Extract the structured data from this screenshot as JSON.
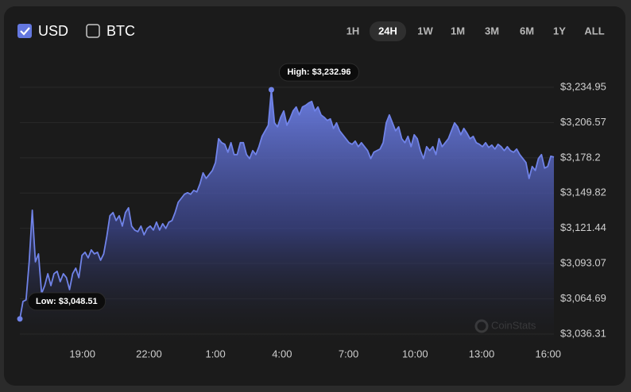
{
  "controls": {
    "currencies": [
      {
        "label": "USD",
        "checked": true
      },
      {
        "label": "BTC",
        "checked": false
      }
    ],
    "ranges": [
      {
        "label": "1H",
        "selected": false
      },
      {
        "label": "24H",
        "selected": true
      },
      {
        "label": "1W",
        "selected": false
      },
      {
        "label": "1M",
        "selected": false
      },
      {
        "label": "3M",
        "selected": false
      },
      {
        "label": "6M",
        "selected": false
      },
      {
        "label": "1Y",
        "selected": false
      },
      {
        "label": "ALL",
        "selected": false
      }
    ]
  },
  "chart_data": {
    "type": "area",
    "color": "#7083e8",
    "watermark": "CoinStats",
    "high_label": "High: $3,232.96",
    "low_label": "Low: $3,048.51",
    "grid": true,
    "xlim": [
      16.18,
      40.26
    ],
    "ylim": [
      3036.31,
      3234.95
    ],
    "xticks": [
      {
        "value": 19,
        "label": "19:00"
      },
      {
        "value": 22,
        "label": "22:00"
      },
      {
        "value": 25,
        "label": "1:00"
      },
      {
        "value": 28,
        "label": "4:00"
      },
      {
        "value": 31,
        "label": "7:00"
      },
      {
        "value": 34,
        "label": "10:00"
      },
      {
        "value": 37,
        "label": "13:00"
      },
      {
        "value": 40,
        "label": "16:00"
      }
    ],
    "yticks": [
      {
        "value": 3036.31,
        "label": "$3,036.31"
      },
      {
        "value": 3064.69,
        "label": "$3,064.69"
      },
      {
        "value": 3093.07,
        "label": "$3,093.07"
      },
      {
        "value": 3121.44,
        "label": "$3,121.44"
      },
      {
        "value": 3149.82,
        "label": "$3,149.82"
      },
      {
        "value": 3178.2,
        "label": "$3,178.2"
      },
      {
        "value": 3206.57,
        "label": "$3,206.57"
      },
      {
        "value": 3234.95,
        "label": "$3,234.95"
      }
    ],
    "x": [
      16.18,
      16.32,
      16.46,
      16.6,
      16.74,
      16.88,
      17.02,
      17.16,
      17.3,
      17.44,
      17.58,
      17.72,
      17.86,
      18,
      18.14,
      18.28,
      18.42,
      18.56,
      18.7,
      18.84,
      18.98,
      19.12,
      19.26,
      19.4,
      19.54,
      19.68,
      19.82,
      19.96,
      20.1,
      20.24,
      20.38,
      20.52,
      20.66,
      20.8,
      20.94,
      21.08,
      21.22,
      21.36,
      21.5,
      21.64,
      21.78,
      21.92,
      22.06,
      22.2,
      22.34,
      22.48,
      22.62,
      22.76,
      22.9,
      23.04,
      23.18,
      23.32,
      23.46,
      23.6,
      23.74,
      23.88,
      24.02,
      24.16,
      24.3,
      24.44,
      24.58,
      24.72,
      24.86,
      25,
      25.14,
      25.28,
      25.42,
      25.56,
      25.7,
      25.84,
      25.98,
      26.12,
      26.26,
      26.4,
      26.54,
      26.68,
      26.82,
      26.96,
      27.1,
      27.24,
      27.38,
      27.52,
      27.66,
      27.8,
      27.94,
      28.08,
      28.22,
      28.36,
      28.5,
      28.64,
      28.78,
      28.92,
      29.06,
      29.2,
      29.34,
      29.48,
      29.62,
      29.76,
      29.9,
      30.04,
      30.18,
      30.32,
      30.46,
      30.6,
      30.74,
      30.88,
      31.02,
      31.16,
      31.3,
      31.44,
      31.58,
      31.72,
      31.86,
      32,
      32.14,
      32.28,
      32.42,
      32.56,
      32.7,
      32.84,
      32.98,
      33.12,
      33.26,
      33.4,
      33.54,
      33.68,
      33.82,
      33.96,
      34.1,
      34.24,
      34.38,
      34.52,
      34.66,
      34.8,
      34.94,
      35.08,
      35.22,
      35.36,
      35.5,
      35.64,
      35.78,
      35.92,
      36.06,
      36.2,
      36.34,
      36.48,
      36.62,
      36.76,
      36.9,
      37.04,
      37.18,
      37.32,
      37.46,
      37.6,
      37.74,
      37.88,
      38.02,
      38.16,
      38.3,
      38.44,
      38.58,
      38.72,
      38.86,
      39,
      39.14,
      39.28,
      39.42,
      39.56,
      39.7,
      39.84,
      39.98,
      40.12,
      40.26
    ],
    "values": [
      3048.51,
      3062.52,
      3063.8,
      3094.48,
      3136.02,
      3094.48,
      3100.87,
      3068.91,
      3075.3,
      3084.89,
      3075.3,
      3084.89,
      3086.81,
      3078.5,
      3084.89,
      3081.69,
      3072.1,
      3084.89,
      3089.36,
      3081.69,
      3099.59,
      3102.15,
      3097.67,
      3104.06,
      3100.87,
      3102.15,
      3095.76,
      3100.87,
      3114.93,
      3131.55,
      3134.11,
      3127.71,
      3131.55,
      3123.24,
      3134.11,
      3137.94,
      3123.24,
      3120.04,
      3118.77,
      3123.24,
      3116.21,
      3121.32,
      3123.24,
      3120.04,
      3126.44,
      3120.04,
      3125.16,
      3121.32,
      3126.44,
      3127.71,
      3134.11,
      3142.42,
      3145.61,
      3148.81,
      3150.09,
      3148.81,
      3152,
      3150.73,
      3157.12,
      3166.07,
      3161.59,
      3164.79,
      3167.98,
      3174.38,
      3193.55,
      3190.35,
      3189.08,
      3182.68,
      3190.35,
      3180.77,
      3180.77,
      3190.35,
      3190.35,
      3180.77,
      3177.57,
      3183.96,
      3180.77,
      3187.16,
      3195.47,
      3199.94,
      3204.42,
      3232.96,
      3206.33,
      3203.14,
      3210.81,
      3215.92,
      3204.42,
      3209.53,
      3215.92,
      3219.12,
      3212.73,
      3219.12,
      3220.4,
      3222.31,
      3223.59,
      3215.92,
      3219.12,
      3212.73,
      3210.81,
      3208.25,
      3209.53,
      3201.86,
      3206.33,
      3199.94,
      3196.75,
      3193.55,
      3190.35,
      3189.08,
      3191.63,
      3187.16,
      3190.35,
      3187.16,
      3183.96,
      3177.57,
      3182.68,
      3183.96,
      3185.24,
      3190.35,
      3206.33,
      3212.73,
      3206.33,
      3199.94,
      3203.14,
      3193.55,
      3190.35,
      3195.47,
      3187.16,
      3196.75,
      3193.55,
      3183.96,
      3177.57,
      3187.16,
      3183.96,
      3187.16,
      3180.77,
      3193.55,
      3187.16,
      3190.35,
      3193.55,
      3199.94,
      3206.33,
      3203.14,
      3196.75,
      3201.86,
      3198.03,
      3193.55,
      3195.47,
      3190.35,
      3189.08,
      3187.16,
      3190.35,
      3186.52,
      3188.44,
      3185.24,
      3189.08,
      3187.16,
      3183.96,
      3187.16,
      3183.96,
      3182.68,
      3185.24,
      3180.77,
      3177.57,
      3174.38,
      3161.59,
      3171.18,
      3167.98,
      3177.57,
      3180.77,
      3169.9,
      3171.18,
      3179.49,
      3178.85
    ]
  }
}
